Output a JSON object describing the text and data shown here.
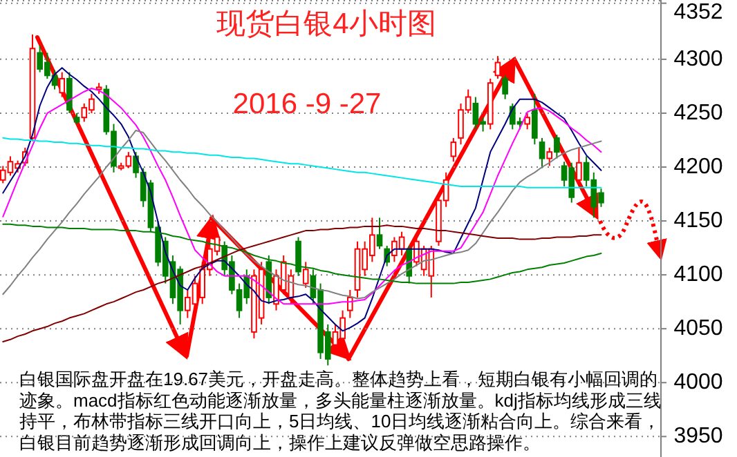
{
  "chart_data": {
    "type": "candlestick",
    "title": "现货白银4小时图",
    "subtitle": "2016 -9 -27",
    "annotations": [
      "白银国际盘开盘在19.67美元，开盘走高。整体趋势上看，短期白银有小幅回调的迹象。macd指标红色动能逐渐放量，多头能量柱逐渐放量。kdj指标均线形成三线持平，布林带指标三线开口向上，5日均线、10日均线逐渐粘合向上。综合来看，白银目前趋势逐渐形成回调向上，操作上建议反弹做空思路操作。"
    ],
    "categories": [
      null,
      null,
      null,
      null,
      null,
      null,
      null,
      null,
      null,
      null,
      null,
      null,
      null,
      null,
      null,
      null,
      null,
      null,
      null,
      null,
      null,
      null,
      null,
      null,
      null,
      null,
      null,
      null,
      null,
      null,
      null,
      null,
      null,
      null,
      null,
      null,
      null,
      null,
      null,
      null,
      null,
      null,
      null,
      null,
      null,
      null,
      null,
      null,
      null,
      null,
      null,
      null,
      null,
      null,
      null,
      null,
      null,
      null,
      null,
      null,
      null,
      null,
      null,
      null,
      null,
      null,
      null,
      null,
      null,
      null,
      null,
      null,
      null,
      null,
      null,
      null,
      null,
      null,
      null,
      null,
      null,
      null
    ],
    "ohlc": [
      [
        4188,
        4201,
        4185,
        4197
      ],
      [
        4195,
        4210,
        4192,
        4205
      ],
      [
        4199,
        4206,
        4195,
        4203
      ],
      [
        4204,
        4218,
        4201,
        4214
      ],
      [
        4227,
        4323,
        4224,
        4310
      ],
      [
        4306,
        4313,
        4288,
        4291
      ],
      [
        4297,
        4306,
        4282,
        4285
      ],
      [
        4285,
        4290,
        4272,
        4276
      ],
      [
        4269,
        4288,
        4265,
        4282
      ],
      [
        4282,
        4288,
        4250,
        4253
      ],
      [
        4246,
        4250,
        4240,
        4242
      ],
      [
        4246,
        4259,
        4242,
        4255
      ],
      [
        4253,
        4268,
        4250,
        4263
      ],
      [
        4272,
        4278,
        4268,
        4274
      ],
      [
        4272,
        4276,
        4230,
        4233
      ],
      [
        4233,
        4240,
        4195,
        4201
      ],
      [
        4199,
        4204,
        4197,
        4201
      ],
      [
        4201,
        4214,
        4199,
        4210
      ],
      [
        4210,
        4214,
        4190,
        4195
      ],
      [
        4195,
        4199,
        4163,
        4169
      ],
      [
        4185,
        4188,
        4140,
        4144
      ],
      [
        4144,
        4150,
        4108,
        4112
      ],
      [
        4131,
        4135,
        4092,
        4099
      ],
      [
        4112,
        4118,
        4073,
        4079
      ],
      [
        4105,
        4108,
        4054,
        4067
      ],
      [
        4067,
        4086,
        4060,
        4079
      ],
      [
        4073,
        4099,
        4067,
        4092
      ],
      [
        4079,
        4112,
        4073,
        4105
      ],
      [
        4105,
        4140,
        4099,
        4124
      ],
      [
        4122,
        4140,
        4118,
        4135
      ],
      [
        4127,
        4131,
        4099,
        4105
      ],
      [
        4112,
        4118,
        4082,
        4086
      ],
      [
        4086,
        4092,
        4060,
        4067
      ],
      [
        4099,
        4105,
        4073,
        4079
      ],
      [
        4047,
        4105,
        4041,
        4099
      ],
      [
        4060,
        4112,
        4054,
        4105
      ],
      [
        4112,
        4118,
        4073,
        4079
      ],
      [
        4073,
        4105,
        4067,
        4099
      ],
      [
        4086,
        4118,
        4082,
        4112
      ],
      [
        4079,
        4105,
        4073,
        4099
      ],
      [
        4131,
        4135,
        4099,
        4103
      ],
      [
        4092,
        4112,
        4088,
        4105
      ],
      [
        4099,
        4105,
        4073,
        4079
      ],
      [
        4086,
        4092,
        4022,
        4028
      ],
      [
        4047,
        4054,
        4016,
        4022
      ],
      [
        4035,
        4054,
        4028,
        4047
      ],
      [
        4041,
        4067,
        4035,
        4060
      ],
      [
        4067,
        4086,
        4060,
        4079
      ],
      [
        4086,
        4131,
        4079,
        4124
      ],
      [
        4105,
        4131,
        4099,
        4124
      ],
      [
        4118,
        4153,
        4112,
        4137
      ],
      [
        4137,
        4153,
        4124,
        4127
      ],
      [
        4124,
        4127,
        4108,
        4112
      ],
      [
        4118,
        4135,
        4112,
        4131
      ],
      [
        4124,
        4140,
        4118,
        4135
      ],
      [
        4124,
        4127,
        4092,
        4099
      ],
      [
        4112,
        4135,
        4108,
        4131
      ],
      [
        4105,
        4127,
        4099,
        4124
      ],
      [
        4099,
        4127,
        4079,
        4124
      ],
      [
        4131,
        4176,
        4127,
        4169
      ],
      [
        4169,
        4195,
        4163,
        4188
      ],
      [
        4210,
        4227,
        4205,
        4223
      ],
      [
        4227,
        4259,
        4221,
        4253
      ],
      [
        4253,
        4272,
        4250,
        4265
      ],
      [
        4259,
        4265,
        4235,
        4240
      ],
      [
        4242,
        4246,
        4233,
        4240
      ],
      [
        4240,
        4282,
        4235,
        4278
      ],
      [
        4285,
        4303,
        4282,
        4297
      ],
      [
        4282,
        4285,
        4263,
        4268
      ],
      [
        4256,
        4259,
        4235,
        4240
      ],
      [
        4242,
        4246,
        4235,
        4240
      ],
      [
        4240,
        4250,
        4235,
        4246
      ],
      [
        4253,
        4268,
        4221,
        4227
      ],
      [
        4223,
        4227,
        4199,
        4208
      ],
      [
        4208,
        4218,
        4201,
        4214
      ],
      [
        4227,
        4230,
        4208,
        4214
      ],
      [
        4201,
        4205,
        4182,
        4188
      ],
      [
        4199,
        4204,
        4167,
        4172
      ],
      [
        4188,
        4218,
        4182,
        4204
      ],
      [
        4204,
        4210,
        4182,
        4188
      ],
      [
        4188,
        4195,
        4153,
        4163
      ],
      [
        4176,
        4180,
        4163,
        4167
      ]
    ],
    "series": [
      {
        "type": "line",
        "color": "#000080",
        "values": [
          4176,
          4187,
          4198,
          4210,
          4230,
          4257,
          4274,
          4286,
          4292,
          4286,
          4281,
          4275,
          4270,
          4263,
          4255,
          4248,
          4240,
          4228,
          4210,
          4195,
          4177,
          4149,
          4121,
          4104,
          4090,
          4086,
          4097,
          4106,
          4110,
          4113,
          4113,
          4106,
          4099,
          4091,
          4085,
          4076,
          4074,
          4076,
          4077,
          4079,
          4080,
          4082,
          4076,
          4068,
          4061,
          4054,
          4048,
          4051,
          4055,
          4060,
          4078,
          4098,
          4118,
          4124,
          4124,
          4124,
          4124,
          4124,
          4124,
          4123,
          4121,
          4120,
          4134,
          4148,
          4162,
          4188,
          4214,
          4227,
          4240,
          4254,
          4263,
          4263,
          4263,
          4260,
          4255,
          4250,
          4245,
          4234,
          4222,
          4211,
          4204,
          4197
        ]
      },
      {
        "type": "line",
        "color": "#ff00ff",
        "values": [
          4154,
          4171,
          4188,
          4204,
          4220,
          4236,
          4250,
          4254,
          4258,
          4262,
          4266,
          4270,
          4273,
          4271,
          4267,
          4261,
          4255,
          4247,
          4239,
          4228,
          4215,
          4201,
          4188,
          4172,
          4155,
          4139,
          4123,
          4116,
          4110,
          4103,
          4099,
          4099,
          4099,
          4099,
          4095,
          4090,
          4084,
          4078,
          4073,
          4073,
          4073,
          4073,
          4073,
          4073,
          4073,
          4074,
          4075,
          4075,
          4076,
          4077,
          4083,
          4090,
          4097,
          4104,
          4109,
          4112,
          4116,
          4119,
          4122,
          4122,
          4122,
          4122,
          4125,
          4136,
          4147,
          4158,
          4175,
          4192,
          4207,
          4222,
          4236,
          4251,
          4254,
          4255,
          4252,
          4247,
          4242,
          4236,
          4231,
          4225,
          4220,
          4214
        ]
      },
      {
        "type": "line",
        "color": "#808080",
        "values": [
          4082,
          4090,
          4099,
          4107,
          4116,
          4124,
          4133,
          4141,
          4149,
          4158,
          4166,
          4175,
          4183,
          4191,
          4200,
          4208,
          4217,
          4225,
          4234,
          4232,
          4223,
          4214,
          4206,
          4197,
          4188,
          4180,
          4171,
          4164,
          4156,
          4149,
          4141,
          4134,
          4126,
          4119,
          4113,
          4108,
          4103,
          4099,
          4095,
          4093,
          4091,
          4090,
          4088,
          4086,
          4085,
          4083,
          4081,
          4080,
          4078,
          4079,
          4084,
          4088,
          4092,
          4096,
          4101,
          4105,
          4109,
          4113,
          4114,
          4116,
          4118,
          4120,
          4121,
          4123,
          4129,
          4139,
          4149,
          4158,
          4168,
          4178,
          4186,
          4191,
          4195,
          4200,
          4204,
          4209,
          4213,
          4216,
          4218,
          4220,
          4222,
          4224
        ]
      },
      {
        "type": "line",
        "color": "#00e5e5",
        "values": [
          4227,
          4226,
          4226,
          4225,
          4225,
          4224,
          4224,
          4223,
          4223,
          4222,
          4222,
          4221,
          4220,
          4220,
          4219,
          4219,
          4218,
          4218,
          4217,
          4217,
          4216,
          4215,
          4215,
          4214,
          4214,
          4213,
          4213,
          4212,
          4211,
          4211,
          4210,
          4209,
          4209,
          4208,
          4208,
          4207,
          4206,
          4205,
          4204,
          4203,
          4203,
          4202,
          4201,
          4200,
          4199,
          4198,
          4197,
          4196,
          4195,
          4195,
          4194,
          4193,
          4192,
          4191,
          4190,
          4189,
          4188,
          4187,
          4186,
          4185,
          4184,
          4183,
          4182,
          4182,
          4182,
          4182,
          4182,
          4182,
          4182,
          4182,
          4182,
          4181,
          4181,
          4181,
          4181,
          4181,
          4181,
          4181,
          4181,
          4181,
          4181,
          4181
        ]
      },
      {
        "type": "line",
        "color": "#008000",
        "values": [
          4147,
          4147,
          4146,
          4146,
          4145,
          4145,
          4144,
          4144,
          4144,
          4143,
          4143,
          4143,
          4142,
          4142,
          4142,
          4142,
          4141,
          4141,
          4141,
          4140,
          4140,
          4139,
          4138,
          4136,
          4135,
          4133,
          4132,
          4131,
          4129,
          4128,
          4126,
          4125,
          4123,
          4121,
          4118,
          4116,
          4114,
          4113,
          4111,
          4110,
          4108,
          4107,
          4106,
          4104,
          4103,
          4101,
          4100,
          4099,
          4098,
          4097,
          4096,
          4096,
          4095,
          4094,
          4093,
          4093,
          4092,
          4092,
          4092,
          4092,
          4092,
          4092,
          4093,
          4093,
          4094,
          4095,
          4096,
          4098,
          4100,
          4102,
          4103,
          4105,
          4106,
          4107,
          4109,
          4110,
          4111,
          4113,
          4115,
          4117,
          4118,
          4120
        ]
      },
      {
        "type": "line",
        "color": "#800000",
        "values": [
          4038,
          4040,
          4043,
          4045,
          4048,
          4050,
          4052,
          4055,
          4057,
          4060,
          4062,
          4064,
          4067,
          4070,
          4073,
          4075,
          4078,
          4081,
          4084,
          4086,
          4089,
          4092,
          4094,
          4097,
          4100,
          4103,
          4106,
          4108,
          4111,
          4114,
          4117,
          4120,
          4123,
          4125,
          4127,
          4129,
          4131,
          4133,
          4135,
          4137,
          4139,
          4141,
          4141,
          4142,
          4142,
          4143,
          4143,
          4144,
          4144,
          4145,
          4145,
          4145,
          4146,
          4145,
          4145,
          4144,
          4143,
          4143,
          4142,
          4141,
          4141,
          4140,
          4139,
          4138,
          4137,
          4136,
          4135,
          4134,
          4134,
          4134,
          4133,
          4133,
          4133,
          4134,
          4134,
          4135,
          4135,
          4135,
          4136,
          4136,
          4137,
          4137
        ]
      }
    ],
    "ylim": [
      3931,
      4355
    ],
    "yticks": [
      3950,
      4000,
      4050,
      4100,
      4150,
      4200,
      4250,
      4300,
      4352
    ],
    "grid": "y",
    "tick_labels": "y"
  }
}
